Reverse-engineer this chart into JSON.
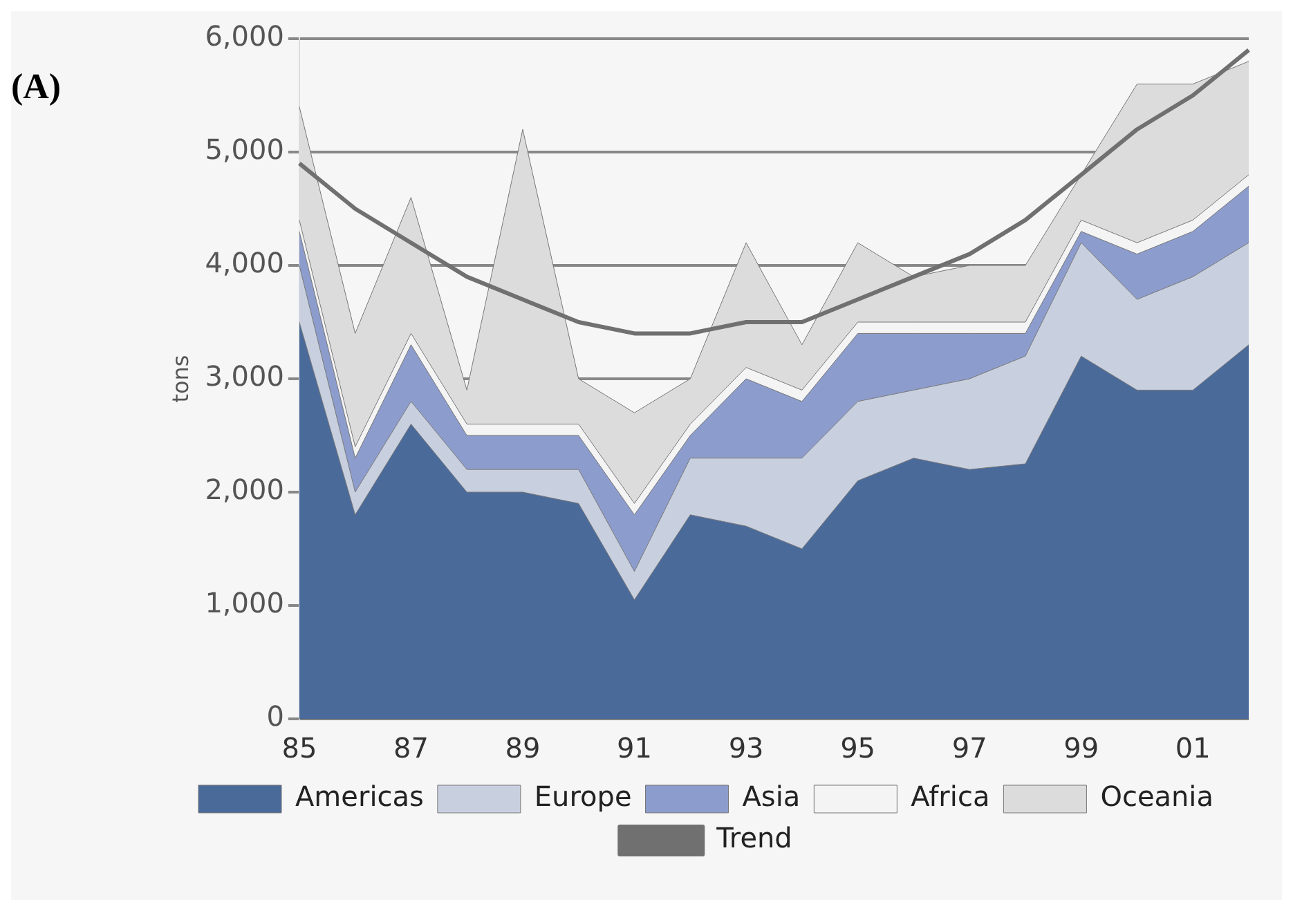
{
  "chart_data": {
    "type": "area",
    "stacked": true,
    "ylabel": "tons",
    "annotations": [
      "(A)"
    ],
    "categories": [
      "85",
      null,
      "87",
      null,
      "89",
      null,
      "91",
      null,
      "93",
      null,
      "95",
      null,
      "97",
      null,
      "99",
      null,
      "01",
      null
    ],
    "series": [
      {
        "name": "Americas",
        "color": "#4a6a9a",
        "values": [
          3500,
          1800,
          2600,
          2000,
          2000,
          1900,
          1050,
          1800,
          1700,
          1500,
          2100,
          2300,
          2200,
          2250,
          3200,
          2900,
          2900,
          3300
        ]
      },
      {
        "name": "Europe",
        "color": "#c8d0e0",
        "values": [
          500,
          200,
          200,
          200,
          200,
          300,
          250,
          500,
          600,
          800,
          700,
          600,
          800,
          950,
          1000,
          800,
          1000,
          900
        ]
      },
      {
        "name": "Asia",
        "color": "#8c9ccc",
        "values": [
          300,
          300,
          500,
          300,
          300,
          300,
          500,
          200,
          700,
          500,
          600,
          500,
          400,
          200,
          100,
          400,
          400,
          500
        ]
      },
      {
        "name": "Africa",
        "color": "#f4f4f4",
        "values": [
          100,
          100,
          100,
          100,
          100,
          100,
          100,
          100,
          100,
          100,
          100,
          100,
          100,
          100,
          100,
          100,
          100,
          100
        ]
      },
      {
        "name": "Oceania",
        "color": "#dcdcdc",
        "values": [
          1000,
          1000,
          1200,
          300,
          2600,
          400,
          800,
          400,
          1100,
          400,
          700,
          400,
          500,
          500,
          400,
          1400,
          1200,
          1000
        ]
      },
      {
        "name": "Trend",
        "type": "line",
        "color": "#707070",
        "values": [
          4900,
          4500,
          4200,
          3900,
          3700,
          3500,
          3400,
          3400,
          3500,
          3500,
          3700,
          3900,
          4100,
          4400,
          4800,
          5200,
          5500,
          5900
        ]
      }
    ],
    "ylim": [
      0,
      6000
    ],
    "yticks": [
      {
        "value": 0,
        "label": "0"
      },
      {
        "value": 1000,
        "label": "1,000"
      },
      {
        "value": 2000,
        "label": "2,000"
      },
      {
        "value": 3000,
        "label": "3,000"
      },
      {
        "value": 4000,
        "label": "4,000"
      },
      {
        "value": 5000,
        "label": "5,000"
      },
      {
        "value": 6000,
        "label": "6,000"
      }
    ],
    "grid": "y",
    "legend": "bottom",
    "marker": "none",
    "line_style": "solid"
  }
}
